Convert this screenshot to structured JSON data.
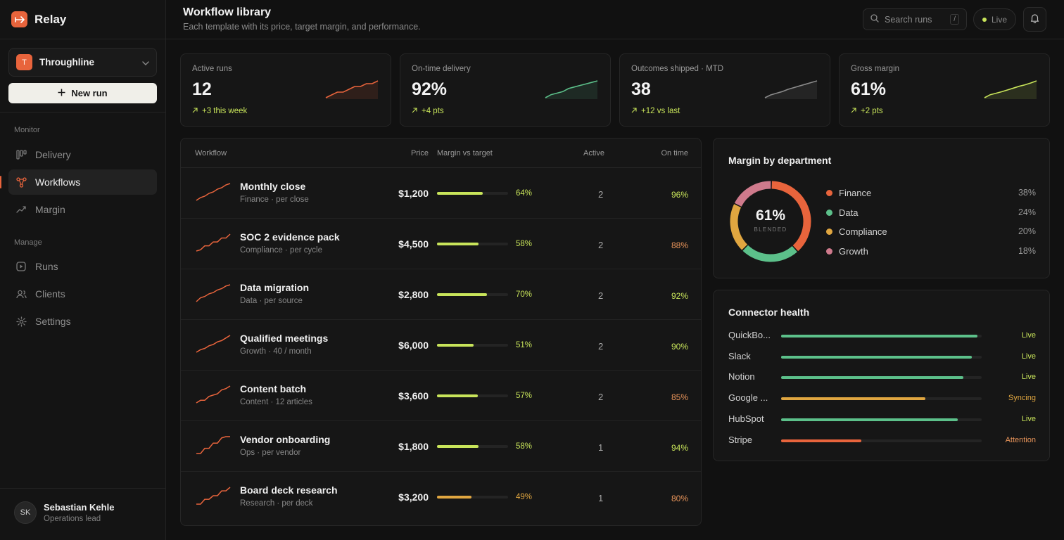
{
  "brand": {
    "name": "Relay"
  },
  "workspace": {
    "initial": "T",
    "name": "Throughline"
  },
  "new_run_label": "New run",
  "nav": {
    "monitor_label": "Monitor",
    "manage_label": "Manage",
    "items": [
      {
        "label": "Delivery",
        "icon": "kanban-icon",
        "active": false
      },
      {
        "label": "Workflows",
        "icon": "workflow-nodes-icon",
        "active": true
      },
      {
        "label": "Margin",
        "icon": "trend-up-icon",
        "active": false
      },
      {
        "label": "Runs",
        "icon": "play-square-icon",
        "active": false
      },
      {
        "label": "Clients",
        "icon": "users-icon",
        "active": false
      },
      {
        "label": "Settings",
        "icon": "gear-icon",
        "active": false
      }
    ]
  },
  "user": {
    "initials": "SK",
    "name": "Sebastian Kehle",
    "role": "Operations lead"
  },
  "header": {
    "title": "Workflow library",
    "subtitle": "Each template with its price, target margin, and performance.",
    "search_placeholder": "Search runs",
    "search_shortcut": "/",
    "live_label": "Live"
  },
  "colors": {
    "accent": "#e8643c",
    "lime": "#c8e45a",
    "green": "#5cc08a",
    "amber": "#e0a640",
    "pink": "#cf7a8c",
    "gray_line": "#8a8a8a",
    "orange_text": "#e8945a"
  },
  "kpis": [
    {
      "label": "Active runs",
      "value": "12",
      "delta": "+3 this week",
      "color": "#e8643c",
      "trend": [
        2,
        3,
        4,
        4,
        5,
        6,
        6,
        7,
        7,
        8
      ]
    },
    {
      "label": "On-time delivery",
      "value": "92%",
      "delta": "+4 pts",
      "color": "#5cc08a",
      "trend": [
        2,
        3,
        3.5,
        4,
        5,
        5.5,
        6,
        6.5,
        7,
        7.5
      ]
    },
    {
      "label": "Outcomes shipped · MTD",
      "value": "38",
      "delta": "+12 vs last",
      "color": "#8a8a8a",
      "trend": [
        2,
        3,
        3.6,
        4.2,
        5,
        5.6,
        6.2,
        6.8,
        7.4,
        8
      ]
    },
    {
      "label": "Gross margin",
      "value": "61%",
      "delta": "+2 pts",
      "color": "#c8e45a",
      "trend": [
        2,
        3,
        3.5,
        4,
        4.6,
        5.2,
        5.8,
        6.3,
        6.9,
        7.6
      ]
    }
  ],
  "workflow_table": {
    "columns": [
      "Workflow",
      "Price",
      "Margin vs target",
      "Active",
      "On time"
    ],
    "rows": [
      {
        "name": "Monthly close",
        "sub": "Finance · per close",
        "price": "$1,200",
        "margin": 64,
        "margin_label": "64%",
        "bar_color": "#c8e45a",
        "active": "2",
        "on_time": "96%",
        "on_time_color": "#c8e45a",
        "trend": [
          1,
          2,
          2.5,
          3.5,
          4,
          5,
          5.5,
          6.5,
          7
        ]
      },
      {
        "name": "SOC 2 evidence pack",
        "sub": "Compliance · per cycle",
        "price": "$4,500",
        "margin": 58,
        "margin_label": "58%",
        "bar_color": "#c8e45a",
        "active": "2",
        "on_time": "88%",
        "on_time_color": "#e8945a",
        "trend": [
          1,
          1.5,
          3,
          3,
          4.5,
          4.5,
          6,
          6,
          7.5
        ]
      },
      {
        "name": "Data migration",
        "sub": "Data · per source",
        "price": "$2,800",
        "margin": 70,
        "margin_label": "70%",
        "bar_color": "#c8e45a",
        "active": "2",
        "on_time": "92%",
        "on_time_color": "#c8e45a",
        "trend": [
          1,
          2.5,
          3,
          4,
          4.5,
          5.5,
          6,
          7,
          7.5
        ]
      },
      {
        "name": "Qualified meetings",
        "sub": "Growth · 40 / month",
        "price": "$6,000",
        "margin": 51,
        "margin_label": "51%",
        "bar_color": "#c8e45a",
        "active": "2",
        "on_time": "90%",
        "on_time_color": "#c8e45a",
        "trend": [
          1,
          2,
          2.5,
          3.5,
          4,
          5,
          5.5,
          6.5,
          7.5
        ]
      },
      {
        "name": "Content batch",
        "sub": "Content · 12 articles",
        "price": "$3,600",
        "margin": 57,
        "margin_label": "57%",
        "bar_color": "#c8e45a",
        "active": "2",
        "on_time": "85%",
        "on_time_color": "#e8945a",
        "trend": [
          1,
          2,
          2,
          3.5,
          4,
          4.5,
          6,
          6.5,
          7.5
        ]
      },
      {
        "name": "Vendor onboarding",
        "sub": "Ops · per vendor",
        "price": "$1,800",
        "margin": 58,
        "margin_label": "58%",
        "bar_color": "#c8e45a",
        "active": "1",
        "on_time": "94%",
        "on_time_color": "#c8e45a",
        "trend": [
          1,
          1,
          3,
          3,
          5,
          5,
          7,
          7.5,
          7.5
        ]
      },
      {
        "name": "Board deck research",
        "sub": "Research · per deck",
        "price": "$3,200",
        "margin": 49,
        "margin_label": "49%",
        "bar_color": "#e0a640",
        "active": "1",
        "on_time": "80%",
        "on_time_color": "#e8945a",
        "trend": [
          1,
          1,
          3,
          3,
          4.5,
          4.5,
          6.5,
          6.5,
          8
        ]
      }
    ]
  },
  "department": {
    "title": "Margin by department",
    "center_value": "61%",
    "center_caption": "BLENDED",
    "slices": [
      {
        "name": "Finance",
        "value": 38,
        "label": "38%",
        "color": "#e8643c"
      },
      {
        "name": "Data",
        "value": 24,
        "label": "24%",
        "color": "#5cc08a"
      },
      {
        "name": "Compliance",
        "value": 20,
        "label": "20%",
        "color": "#e0a640"
      },
      {
        "name": "Growth",
        "value": 18,
        "label": "18%",
        "color": "#cf7a8c"
      }
    ]
  },
  "connectors": {
    "title": "Connector health",
    "items": [
      {
        "name": "QuickBo...",
        "level": 0.98,
        "status": "Live",
        "color": "#5cc08a",
        "status_color": "#c8e45a"
      },
      {
        "name": "Slack",
        "level": 0.95,
        "status": "Live",
        "color": "#5cc08a",
        "status_color": "#c8e45a"
      },
      {
        "name": "Notion",
        "level": 0.91,
        "status": "Live",
        "color": "#5cc08a",
        "status_color": "#c8e45a"
      },
      {
        "name": "Google ...",
        "level": 0.72,
        "status": "Syncing",
        "color": "#e0a640",
        "status_color": "#e0a640"
      },
      {
        "name": "HubSpot",
        "level": 0.88,
        "status": "Live",
        "color": "#5cc08a",
        "status_color": "#c8e45a"
      },
      {
        "name": "Stripe",
        "level": 0.4,
        "status": "Attention",
        "color": "#e8643c",
        "status_color": "#e8945a"
      }
    ]
  }
}
